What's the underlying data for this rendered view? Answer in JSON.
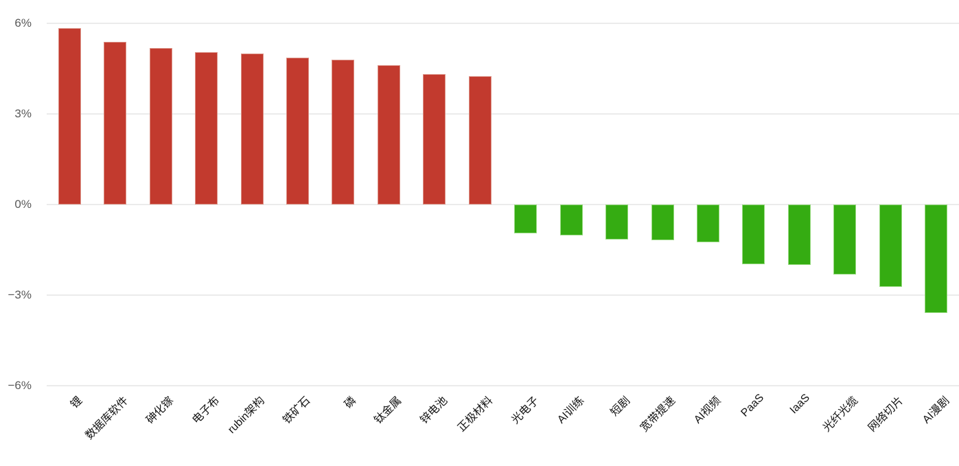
{
  "chart_data": {
    "type": "bar",
    "categories": [
      "锂",
      "数据库软件",
      "砷化镓",
      "电子布",
      "rubin架构",
      "铁矿石",
      "磷",
      "钛金属",
      "锌电池",
      "正极材料",
      "光电子",
      "AI训练",
      "短剧",
      "宽带提速",
      "AI视频",
      "PaaS",
      "IaaS",
      "光纤光缆",
      "网络切片",
      "AI漫剧"
    ],
    "values": [
      5.83,
      5.39,
      5.19,
      5.04,
      5.0,
      4.86,
      4.8,
      4.61,
      4.32,
      4.25,
      -0.95,
      -1.02,
      -1.17,
      -1.19,
      -1.25,
      -1.97,
      -2.0,
      -2.31,
      -2.72,
      -3.59
    ],
    "unit": "%",
    "title": "",
    "xlabel": "",
    "ylabel": "",
    "ylim": [
      -6,
      6
    ],
    "grid": true,
    "legend": "none",
    "yticks": [
      {
        "label": "6%",
        "value": 6
      },
      {
        "label": "3%",
        "value": 3
      },
      {
        "label": "0%",
        "value": 0
      },
      {
        "label": "−3%",
        "value": -3
      },
      {
        "label": "−6%",
        "value": -6
      }
    ]
  },
  "colors": {
    "background": "#ffffff",
    "positive_bar": "#c23a2e",
    "positive_bar_border": "#dc9388",
    "negative_bar": "#35ac12",
    "negative_bar_border": "#97da80",
    "gridline": "#ebebeb",
    "y_label_text": "#595959",
    "x_label_text": "#141414"
  }
}
